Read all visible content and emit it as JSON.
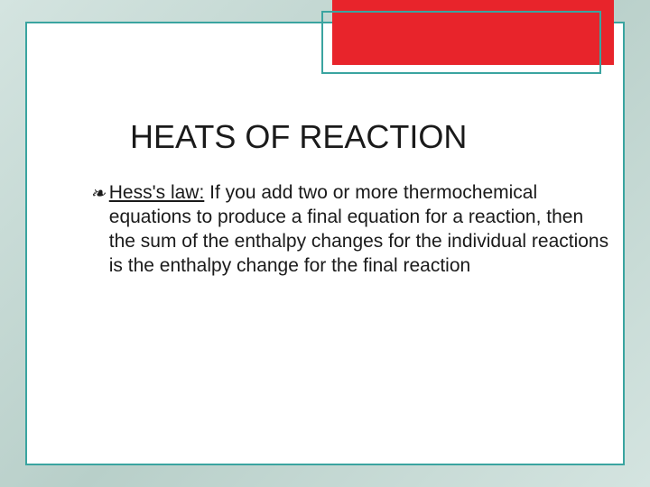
{
  "slide": {
    "title": "HEATS OF REACTION",
    "bullet": {
      "term": "Hess's law:",
      "definition": "If you add two or more thermochemical equations to produce a final equation for a reaction, then the sum of the enthalpy changes for the individual reactions is the enthalpy change for the final reaction"
    }
  },
  "style": {
    "background_gradient_start": "#d4e4e0",
    "background_gradient_mid": "#b8cfc9",
    "frame_border_color": "#3aa4a0",
    "accent_box_border_color": "#3aa4a0",
    "red_box_color": "#e8242b",
    "title_fontsize": 36,
    "body_fontsize": 21,
    "text_color": "#1a1a1a"
  }
}
